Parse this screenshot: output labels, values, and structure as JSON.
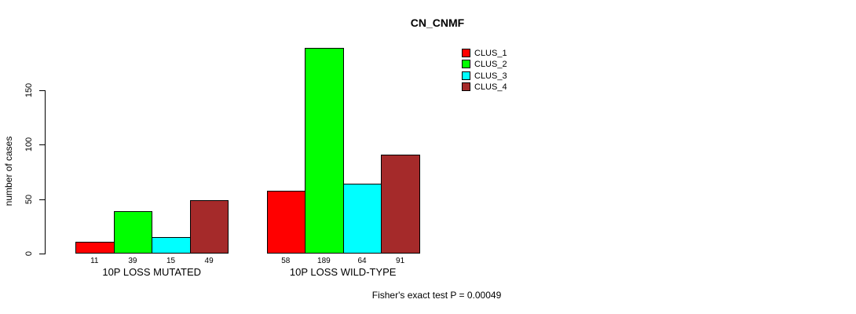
{
  "chart_data": {
    "type": "bar",
    "title": "CN_CNMF",
    "ylabel": "number of cases",
    "xlabel": "",
    "yticks": [
      0,
      50,
      100,
      150
    ],
    "ylim": [
      0,
      195
    ],
    "grid": false,
    "legend_position": "top-right",
    "categories": [
      "10P LOSS MUTATED",
      "10P LOSS WILD-TYPE"
    ],
    "series": [
      {
        "name": "CLUS_1",
        "color": "#FF0000",
        "values": [
          11,
          58
        ]
      },
      {
        "name": "CLUS_2",
        "color": "#00FF00",
        "values": [
          39,
          189
        ]
      },
      {
        "name": "CLUS_3",
        "color": "#00FFFF",
        "values": [
          15,
          64
        ]
      },
      {
        "name": "CLUS_4",
        "color": "#A52A2A",
        "values": [
          49,
          91
        ]
      }
    ],
    "bar_value_labels": [
      [
        "11",
        "39",
        "15",
        "49"
      ],
      [
        "58",
        "189",
        "64",
        "91"
      ]
    ],
    "annotation": "Fisher's exact test P = 0.00049"
  }
}
